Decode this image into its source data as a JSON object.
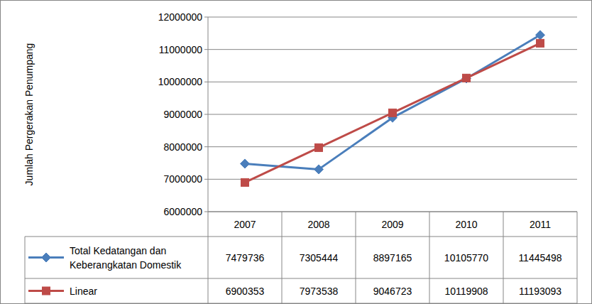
{
  "chart_data": {
    "type": "line",
    "y_label": "Jumlah Pergerakan Penumpang",
    "categories": [
      "2007",
      "2008",
      "2009",
      "2010",
      "2011"
    ],
    "series": [
      {
        "name": "Total Kedatangan dan Keberangkatan Domestik",
        "color": "#4a7ebb",
        "marker": "diamond",
        "values": [
          7479736,
          7305444,
          8897165,
          10105770,
          11445498
        ]
      },
      {
        "name": "Linear",
        "color": "#be4b48",
        "marker": "square",
        "values": [
          6900353,
          7973538,
          9046723,
          10119908,
          11193093
        ]
      }
    ],
    "ylim": [
      6000000,
      12000000
    ],
    "yticks": [
      6000000,
      7000000,
      8000000,
      9000000,
      10000000,
      11000000,
      12000000
    ],
    "grid": true,
    "data_labels": true
  }
}
